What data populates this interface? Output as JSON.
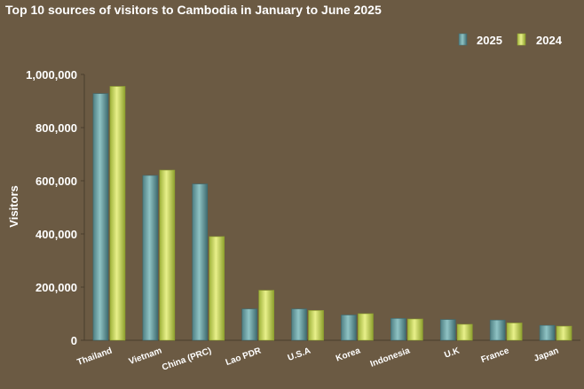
{
  "chart_data": {
    "type": "bar",
    "title": "Top 10 sources of visitors to Cambodia in January to June 2025",
    "ylabel": "Visitors",
    "xlabel": "",
    "ylim": [
      0,
      1000000
    ],
    "yticks": [
      0,
      200000,
      400000,
      600000,
      800000,
      1000000
    ],
    "ytick_labels": [
      "0",
      "200,000",
      "400,000",
      "600,000",
      "800,000",
      "1,000,000"
    ],
    "grid": false,
    "legend_position": "top-right",
    "categories": [
      "Thailand",
      "Vietnam",
      "China (PRC)",
      "Lao PDR",
      "U.S.A",
      "Korea",
      "Indonesia",
      "U.K",
      "France",
      "Japan"
    ],
    "series": [
      {
        "name": "2025",
        "color": "#6aa3a6",
        "values": [
          928000,
          620000,
          588000,
          118000,
          118000,
          95000,
          82000,
          78000,
          76000,
          56000
        ]
      },
      {
        "name": "2024",
        "color": "#c9d85a",
        "values": [
          955000,
          640000,
          390000,
          188000,
          112000,
          100000,
          80000,
          60000,
          65000,
          53000
        ]
      }
    ]
  }
}
